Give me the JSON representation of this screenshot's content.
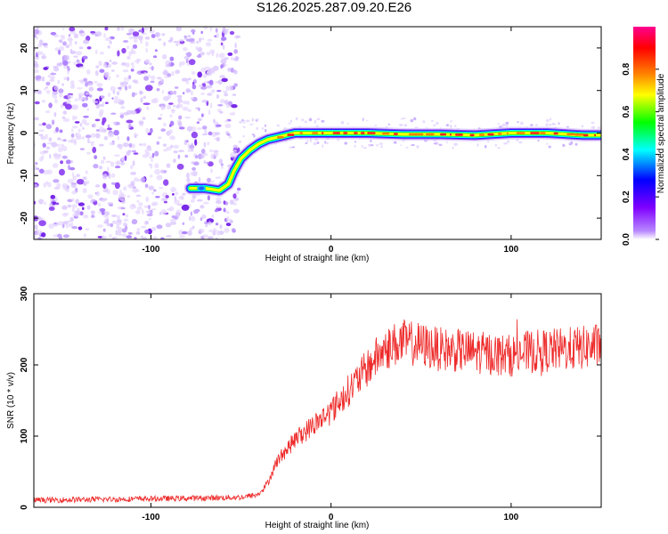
{
  "title": "S126.2025.287.09.20.E26",
  "colors": {
    "snr_line": "#ee2a2a",
    "spectrogram_noise": "#8a3cf0",
    "track_core": "#ee2020",
    "colormap": [
      "#ffffff",
      "#7f00ff",
      "#0000ff",
      "#00ffff",
      "#00ff00",
      "#ffff00",
      "#ff8000",
      "#ff0000",
      "#ff0090"
    ]
  },
  "chart_data": [
    {
      "type": "heatmap",
      "title": "",
      "xlabel": "Height of straight line (km)",
      "ylabel": "Frequency (Hz)",
      "xlim": [
        -165,
        150
      ],
      "ylim": [
        -25,
        25
      ],
      "x_ticks": [
        -100,
        0,
        100
      ],
      "y_ticks": [
        20,
        10,
        0,
        -10,
        -20
      ],
      "colorbar": {
        "label": "Normalized spectral amplitude",
        "range": [
          0.0,
          1.0
        ],
        "ticks": [
          "0.0",
          "0.2",
          "0.4",
          "0.6",
          "0.8"
        ]
      },
      "noise_region_x": [
        -165,
        -53
      ],
      "track": {
        "x": [
          -78,
          -70,
          -62,
          -57,
          -54,
          -50,
          -45,
          -40,
          -35,
          -30,
          -25,
          -20,
          -10,
          0,
          20,
          40,
          60,
          80,
          100,
          120,
          140,
          150
        ],
        "y": [
          -13,
          -13,
          -13.5,
          -12,
          -9,
          -6,
          -4,
          -2.5,
          -1.5,
          -1,
          -0.5,
          0,
          0,
          0,
          0,
          -0.3,
          -0.3,
          -0.5,
          0,
          0,
          -0.5,
          -0.5
        ]
      }
    },
    {
      "type": "line",
      "title": "",
      "xlabel": "Height of straight line (km)",
      "ylabel": "SNR (10 * v/v)",
      "xlim": [
        -165,
        150
      ],
      "ylim": [
        0,
        300
      ],
      "x_ticks": [
        -100,
        0,
        100
      ],
      "y_ticks": [
        0,
        100,
        200,
        300
      ],
      "series": [
        {
          "name": "",
          "x": [
            -165,
            -130,
            -100,
            -70,
            -50,
            -40,
            -35,
            -30,
            -25,
            -20,
            -15,
            -10,
            -5,
            0,
            5,
            10,
            15,
            20,
            25,
            30,
            35,
            40,
            50,
            60,
            70,
            80,
            90,
            100,
            110,
            120,
            130,
            140,
            150
          ],
          "values": [
            10,
            11,
            12,
            13,
            14,
            18,
            35,
            65,
            80,
            95,
            105,
            115,
            125,
            135,
            150,
            165,
            180,
            195,
            210,
            222,
            228,
            232,
            228,
            222,
            220,
            218,
            215,
            213,
            218,
            220,
            222,
            224,
            228
          ]
        }
      ]
    }
  ]
}
